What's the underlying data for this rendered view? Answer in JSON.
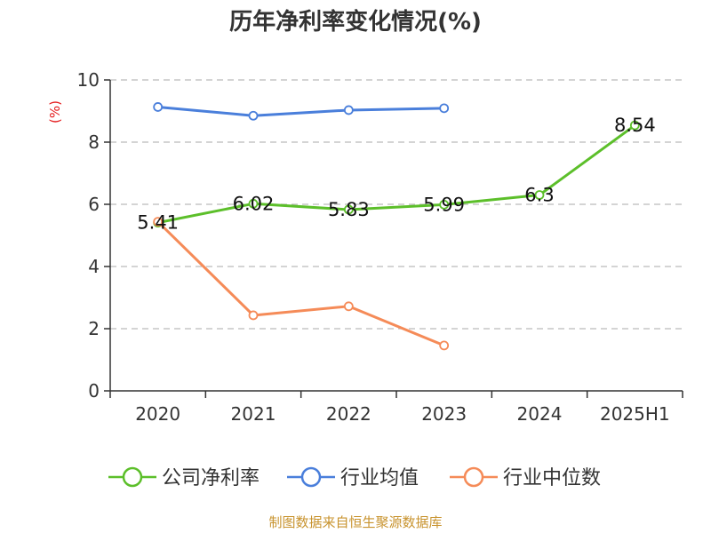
{
  "chart_data": {
    "type": "line",
    "title": "历年净利率变化情况(%)",
    "xlabel": "",
    "ylabel": "(%)",
    "categories": [
      "2020",
      "2021",
      "2022",
      "2023",
      "2024",
      "2025H1"
    ],
    "ylim": [
      0,
      10
    ],
    "yticks": [
      0,
      2,
      4,
      6,
      8,
      10
    ],
    "grid": true,
    "legend_position": "bottom",
    "series": [
      {
        "name": "公司净利率",
        "color": "#5cbf2a",
        "values": [
          5.41,
          6.02,
          5.83,
          5.99,
          6.3,
          8.54
        ],
        "show_labels": true
      },
      {
        "name": "行业均值",
        "color": "#4a7fdb",
        "values": [
          9.13,
          8.85,
          9.03,
          9.09,
          null,
          null
        ],
        "show_labels": false
      },
      {
        "name": "行业中位数",
        "color": "#f58b58",
        "values": [
          5.44,
          2.43,
          2.72,
          1.46,
          null,
          null
        ],
        "show_labels": false
      }
    ]
  },
  "source": "制图数据来自恒生聚源数据库"
}
